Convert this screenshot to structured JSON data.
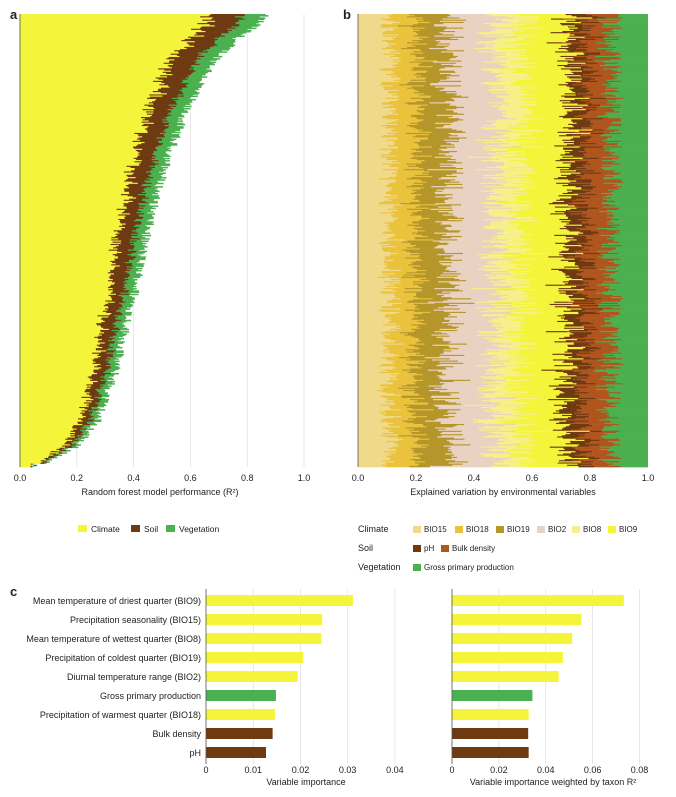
{
  "colors": {
    "climate": "#f4f43a",
    "soil": "#6e3a12",
    "vegetation": "#4bb04f",
    "BIO15": "#f0d98a",
    "BIO18": "#eac23c",
    "BIO19": "#b5962a",
    "BIO2": "#ead2c2",
    "BIO8": "#f7f08a",
    "BIO9": "#f4f43a",
    "pH": "#6e3a12",
    "Bulk density": "#b0551e",
    "Gross primary production": "#4bb04f",
    "grid": "#dddddd",
    "axis": "#555555"
  },
  "chart_data": [
    {
      "panel": "a",
      "type": "bar",
      "orientation": "horizontal-stacked",
      "xlabel": "Random forest model performance (R²)",
      "xticks": [
        "0.0",
        "0.2",
        "0.4",
        "0.6",
        "0.8",
        "1.0"
      ],
      "xlim": [
        0,
        1.0
      ],
      "n_taxa": 400,
      "series": [
        {
          "name": "Climate",
          "color_key": "climate"
        },
        {
          "name": "Soil",
          "color_key": "soil"
        },
        {
          "name": "Vegetation",
          "color_key": "vegetation"
        }
      ],
      "total_r2_profile": {
        "x_fraction_of_taxa": [
          0.0,
          0.02,
          0.05,
          0.1,
          0.2,
          0.3,
          0.4,
          0.5,
          0.6,
          0.7,
          0.8,
          0.9,
          0.95,
          0.99,
          1.0
        ],
        "total": [
          0.86,
          0.84,
          0.77,
          0.69,
          0.59,
          0.53,
          0.48,
          0.44,
          0.41,
          0.37,
          0.33,
          0.27,
          0.21,
          0.1,
          0.03
        ]
      },
      "approx_share": {
        "Climate": 0.78,
        "Soil": 0.13,
        "Vegetation": 0.09
      }
    },
    {
      "panel": "b",
      "type": "bar",
      "orientation": "horizontal-stacked",
      "xlabel": "Explained variation by environmental variables",
      "xticks": [
        "0.0",
        "0.2",
        "0.4",
        "0.6",
        "0.8",
        "1.0"
      ],
      "xlim": [
        0,
        1.0
      ],
      "n_taxa": 400,
      "series": [
        {
          "name": "BIO15",
          "color_key": "BIO15",
          "mean": 0.11
        },
        {
          "name": "BIO18",
          "color_key": "BIO18",
          "mean": 0.09
        },
        {
          "name": "BIO19",
          "color_key": "BIO19",
          "mean": 0.11
        },
        {
          "name": "BIO2",
          "color_key": "BIO2",
          "mean": 0.16
        },
        {
          "name": "BIO8",
          "color_key": "BIO8",
          "mean": 0.09
        },
        {
          "name": "BIO9",
          "color_key": "BIO9",
          "mean": 0.16
        },
        {
          "name": "pH",
          "color_key": "pH",
          "mean": 0.06
        },
        {
          "name": "Bulk density",
          "color_key": "Bulk density",
          "mean": 0.09
        },
        {
          "name": "Gross primary production",
          "color_key": "Gross primary production",
          "mean": 0.13
        }
      ]
    },
    {
      "panel": "c-left",
      "type": "bar",
      "orientation": "horizontal",
      "xlabel": "Variable importance",
      "xticks": [
        "0",
        "0.01",
        "0.02",
        "0.03",
        "0.04"
      ],
      "xlim": [
        0,
        0.047
      ],
      "categories": [
        "Mean temperature of driest quarter (BIO9)",
        "Precipitation seasonality (BIO15)",
        "Mean temperature of wettest quarter (BIO8)",
        "Precipitation of coldest quarter (BIO19)",
        "Diurnal temperature range (BIO2)",
        "Gross primary production",
        "Precipitation of warmest quarter (BIO18)",
        "Bulk density",
        "pH"
      ],
      "values": [
        0.0311,
        0.0246,
        0.0244,
        0.0206,
        0.0194,
        0.0148,
        0.0146,
        0.0141,
        0.0127
      ],
      "group": [
        "climate",
        "climate",
        "climate",
        "climate",
        "climate",
        "vegetation",
        "climate",
        "soil",
        "soil"
      ]
    },
    {
      "panel": "c-right",
      "type": "bar",
      "orientation": "horizontal",
      "xlabel": "Variable importance weighted by taxon R²",
      "xticks": [
        "0",
        "0.02",
        "0.04",
        "0.06",
        "0.08"
      ],
      "xlim": [
        0,
        0.093
      ],
      "categories": [
        "Mean temperature of driest quarter (BIO9)",
        "Precipitation seasonality (BIO15)",
        "Mean temperature of wettest quarter (BIO8)",
        "Precipitation of coldest quarter (BIO19)",
        "Diurnal temperature range (BIO2)",
        "Gross primary production",
        "Precipitation of warmest quarter (BIO18)",
        "Bulk density",
        "pH"
      ],
      "values": [
        0.0733,
        0.0552,
        0.0513,
        0.0473,
        0.0455,
        0.0343,
        0.0327,
        0.0325,
        0.0327
      ],
      "group": [
        "climate",
        "climate",
        "climate",
        "climate",
        "climate",
        "vegetation",
        "climate",
        "soil",
        "soil"
      ]
    }
  ],
  "panel_labels": {
    "a": "a",
    "b": "b",
    "c": "c"
  },
  "legend_a": {
    "climate": "Climate",
    "soil": "Soil",
    "vegetation": "Vegetation"
  },
  "legend_b": {
    "climate_title": "Climate",
    "soil_title": "Soil",
    "vegetation_title": "Vegetation",
    "bio15": "BIO15",
    "bio18": "BIO18",
    "bio19": "BIO19",
    "bio2": "BIO2",
    "bio8": "BIO8",
    "bio9": "BIO9",
    "ph": "pH",
    "bulk": "Bulk density",
    "gpp": "Gross primary production"
  }
}
